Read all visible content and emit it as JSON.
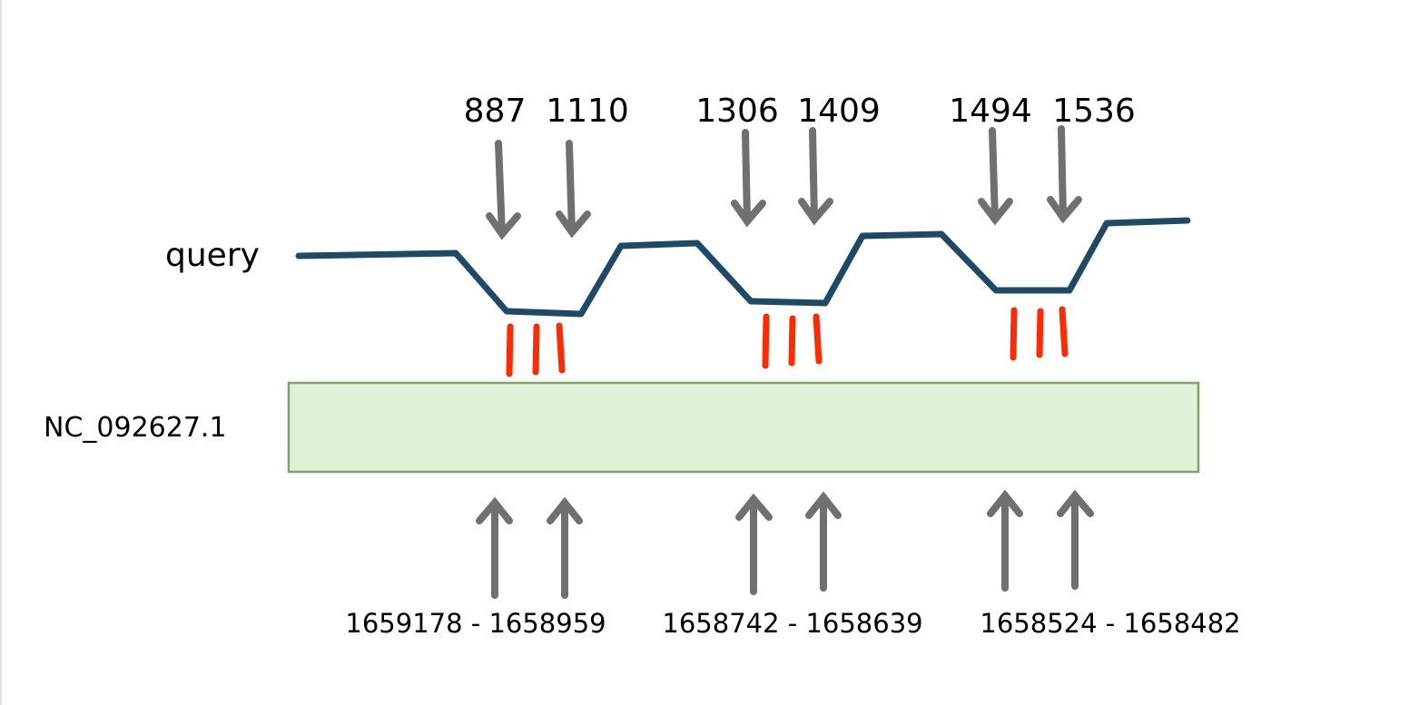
{
  "query_label": "query",
  "reference_label": "NC_092627.1",
  "exons": [
    {
      "query_start": "887",
      "query_end": "1110",
      "ref_range": "1659178 - 1658959"
    },
    {
      "query_start": "1306",
      "query_end": "1409",
      "ref_range": "1658742 - 1658639"
    },
    {
      "query_start": "1494",
      "query_end": "1536",
      "ref_range": "1658524 - 1658482"
    }
  ],
  "colors": {
    "query_line": "#1f4a66",
    "match_ticks": "#ff2a00",
    "arrows": "#707070",
    "reference_fill": "#dff2d8",
    "reference_stroke": "#7ea46c"
  }
}
